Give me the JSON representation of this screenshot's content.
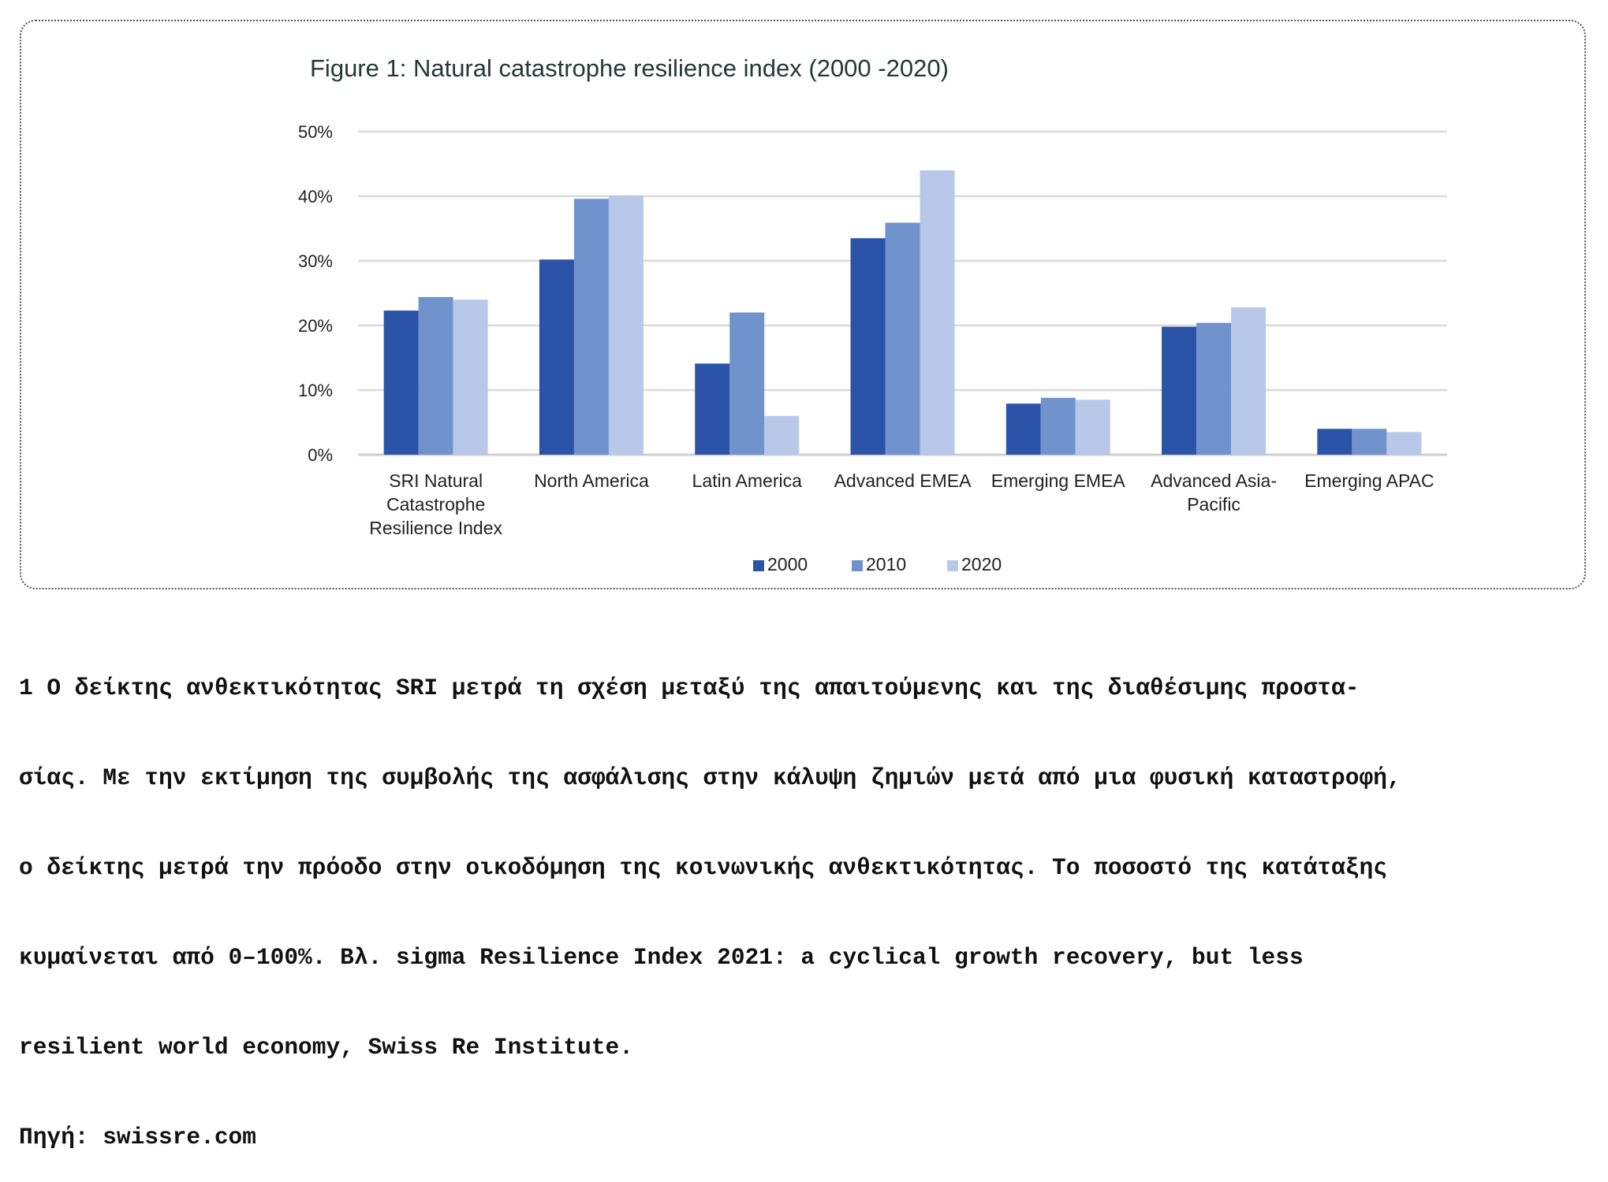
{
  "chart_data": {
    "type": "bar",
    "title": "Figure 1:  Natural catastrophe resilience index (2000  -2020)",
    "categories": [
      [
        "SRI Natural",
        "Catastrophe",
        "Resilience Index"
      ],
      [
        "North America"
      ],
      [
        "Latin America"
      ],
      [
        "Advanced EMEA"
      ],
      [
        "Emerging EMEA"
      ],
      [
        "Advanced Asia-",
        "Pacific"
      ],
      [
        "Emerging APAC"
      ]
    ],
    "series": [
      {
        "name": "2000",
        "color": "#2b53a7",
        "values": [
          22.3,
          30.2,
          14.1,
          33.5,
          7.9,
          19.8,
          4.0
        ]
      },
      {
        "name": "2010",
        "color": "#7093ce",
        "values": [
          24.4,
          39.6,
          22.0,
          35.9,
          8.8,
          20.4,
          4.0
        ]
      },
      {
        "name": "2020",
        "color": "#b7c8e8",
        "values": [
          24.0,
          40.1,
          6.0,
          44.0,
          8.5,
          22.8,
          3.5
        ]
      }
    ],
    "ylim": [
      0,
      50
    ],
    "yticks": [
      "0%",
      "10%",
      "20%",
      "30%",
      "40%",
      "50%"
    ],
    "xlabel": "",
    "ylabel": "",
    "grid": true,
    "legend": "bottom"
  },
  "footnote": {
    "lines": [
      "1 Ο δείκτης ανθεκτικότητας SRI μετρά τη σχέση μεταξύ της απαιτούμενης και της διαθέσιμης προστα-",
      "σίας. Με την εκτίμηση της συμβολής της ασφάλισης στην κάλυψη ζημιών μετά από μια φυσική καταστροφή,",
      "ο δείκτης μετρά την πρόοδο στην οικοδόμηση της κοινωνικής ανθεκτικότητας. Το ποσοστό της κατάταξης",
      "κυμαίνεται από 0–100%. Βλ. sigma Resilience Index 2021: a cyclical growth recovery, but less",
      "resilient world economy, Swiss Re Institute."
    ],
    "source": "Πηγή: swissre.com"
  }
}
